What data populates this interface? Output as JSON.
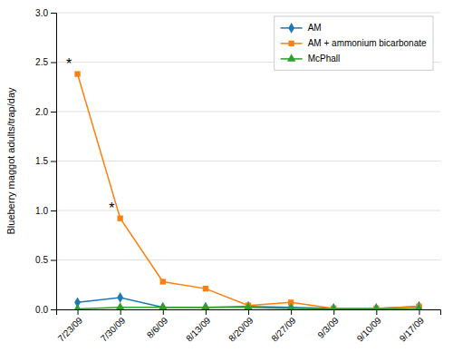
{
  "chart_data": {
    "type": "line",
    "categories": [
      "7/23/09",
      "7/30/09",
      "8/6/09",
      "8/13/09",
      "8/20/09",
      "8/27/09",
      "9/3/09",
      "9/10/09",
      "9/17/09"
    ],
    "series": [
      {
        "name": "AM",
        "marker": "diamond",
        "values": [
          0.07,
          0.12,
          0.02,
          0.02,
          0.03,
          0.02,
          0.01,
          0.01,
          0.03
        ]
      },
      {
        "name": "AM + ammonium bicarbonate",
        "marker": "square",
        "values": [
          2.38,
          0.92,
          0.28,
          0.21,
          0.04,
          0.07,
          0.01,
          0.01,
          0.03
        ]
      },
      {
        "name": "McPhall",
        "marker": "triangle",
        "values": [
          0.005,
          0.02,
          0.02,
          0.02,
          0.02,
          0.01,
          0.005,
          0.005,
          0.01
        ]
      }
    ],
    "ylabel": "Blueberry maggot adults/trap/day",
    "ylim": [
      0,
      3
    ],
    "yticks": [
      {
        "value": 0,
        "label": "0.0"
      },
      0.5,
      {
        "value": 1,
        "label": "1.0"
      },
      1.5,
      {
        "value": 2,
        "label": "2.0"
      },
      2.5,
      {
        "value": 3,
        "label": "3.0"
      }
    ],
    "annotations": [
      {
        "text": "*",
        "x": "7/23/09",
        "y": 2.38
      },
      {
        "text": "*",
        "x": "7/30/09",
        "y": 0.92
      }
    ],
    "grid": true,
    "legend": "top-right"
  }
}
